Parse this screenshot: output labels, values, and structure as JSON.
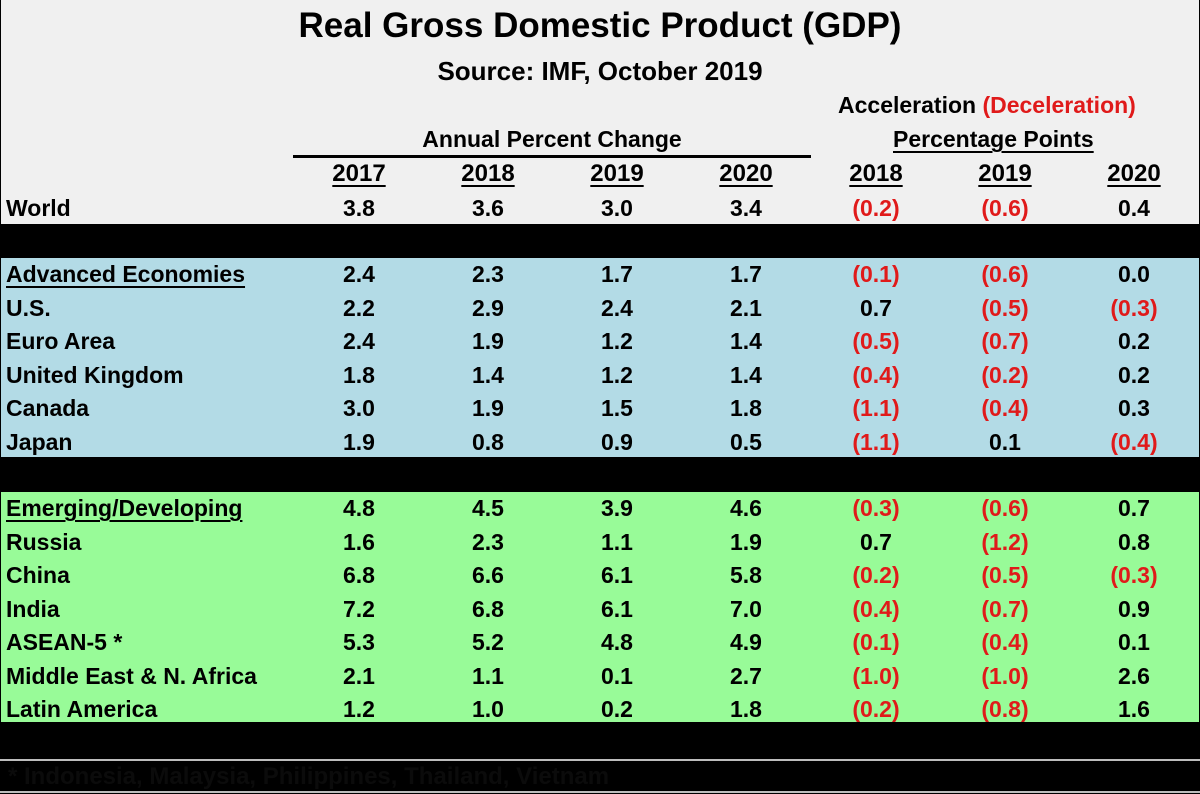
{
  "chart_data": {
    "type": "table",
    "title": "Real Gross Domestic Product (GDP)",
    "subtitle": "Source:  IMF, October 2019",
    "group_headers": {
      "annual": "Annual Percent Change",
      "accel_prefix": "Acceleration",
      "accel_red": "(Deceleration)",
      "accel_units": "Percentage Points"
    },
    "annual_years": [
      "2017",
      "2018",
      "2019",
      "2020"
    ],
    "accel_years": [
      "2018",
      "2019",
      "2020"
    ],
    "colors": {
      "negative": "#e01a1a",
      "advanced_bg": "#b3dbe6",
      "emerging_bg": "#98fb98",
      "header_bg": "#f0f0f0"
    },
    "rows": [
      {
        "label": "World",
        "group": "world",
        "annual": [
          "3.8",
          "3.6",
          "3.0",
          "3.4"
        ],
        "accel": [
          "(0.2)",
          "(0.6)",
          "0.4"
        ]
      },
      {
        "label": "Advanced Economies",
        "group": "advanced",
        "header": true,
        "annual": [
          "2.4",
          "2.3",
          "1.7",
          "1.7"
        ],
        "accel": [
          "(0.1)",
          "(0.6)",
          "0.0"
        ]
      },
      {
        "label": "U.S.",
        "group": "advanced",
        "annual": [
          "2.2",
          "2.9",
          "2.4",
          "2.1"
        ],
        "accel": [
          "0.7",
          "(0.5)",
          "(0.3)"
        ]
      },
      {
        "label": "Euro Area",
        "group": "advanced",
        "annual": [
          "2.4",
          "1.9",
          "1.2",
          "1.4"
        ],
        "accel": [
          "(0.5)",
          "(0.7)",
          "0.2"
        ]
      },
      {
        "label": "United Kingdom",
        "group": "advanced",
        "annual": [
          "1.8",
          "1.4",
          "1.2",
          "1.4"
        ],
        "accel": [
          "(0.4)",
          "(0.2)",
          "0.2"
        ]
      },
      {
        "label": "Canada",
        "group": "advanced",
        "annual": [
          "3.0",
          "1.9",
          "1.5",
          "1.8"
        ],
        "accel": [
          "(1.1)",
          "(0.4)",
          "0.3"
        ]
      },
      {
        "label": "Japan",
        "group": "advanced",
        "annual": [
          "1.9",
          "0.8",
          "0.9",
          "0.5"
        ],
        "accel": [
          "(1.1)",
          "0.1",
          "(0.4)"
        ]
      },
      {
        "label": "Emerging/Developing",
        "group": "emerging",
        "header": true,
        "annual": [
          "4.8",
          "4.5",
          "3.9",
          "4.6"
        ],
        "accel": [
          "(0.3)",
          "(0.6)",
          "0.7"
        ]
      },
      {
        "label": "Russia",
        "group": "emerging",
        "annual": [
          "1.6",
          "2.3",
          "1.1",
          "1.9"
        ],
        "accel": [
          "0.7",
          "(1.2)",
          "0.8"
        ]
      },
      {
        "label": "China",
        "group": "emerging",
        "annual": [
          "6.8",
          "6.6",
          "6.1",
          "5.8"
        ],
        "accel": [
          "(0.2)",
          "(0.5)",
          "(0.3)"
        ]
      },
      {
        "label": "India",
        "group": "emerging",
        "annual": [
          "7.2",
          "6.8",
          "6.1",
          "7.0"
        ],
        "accel": [
          "(0.4)",
          "(0.7)",
          "0.9"
        ]
      },
      {
        "label": "ASEAN-5 *",
        "group": "emerging",
        "annual": [
          "5.3",
          "5.2",
          "4.8",
          "4.9"
        ],
        "accel": [
          "(0.1)",
          "(0.4)",
          "0.1"
        ]
      },
      {
        "label": "Middle East & N. Africa",
        "group": "emerging",
        "annual": [
          "2.1",
          "1.1",
          "0.1",
          "2.7"
        ],
        "accel": [
          "(1.0)",
          "(1.0)",
          "2.6"
        ]
      },
      {
        "label": "Latin America",
        "group": "emerging",
        "annual": [
          "1.2",
          "1.0",
          "0.2",
          "1.8"
        ],
        "accel": [
          "(0.2)",
          "(0.8)",
          "1.6"
        ]
      }
    ],
    "footnote": "* Indonesia, Malaysia, Philippines, Thailand, Vietnam"
  }
}
